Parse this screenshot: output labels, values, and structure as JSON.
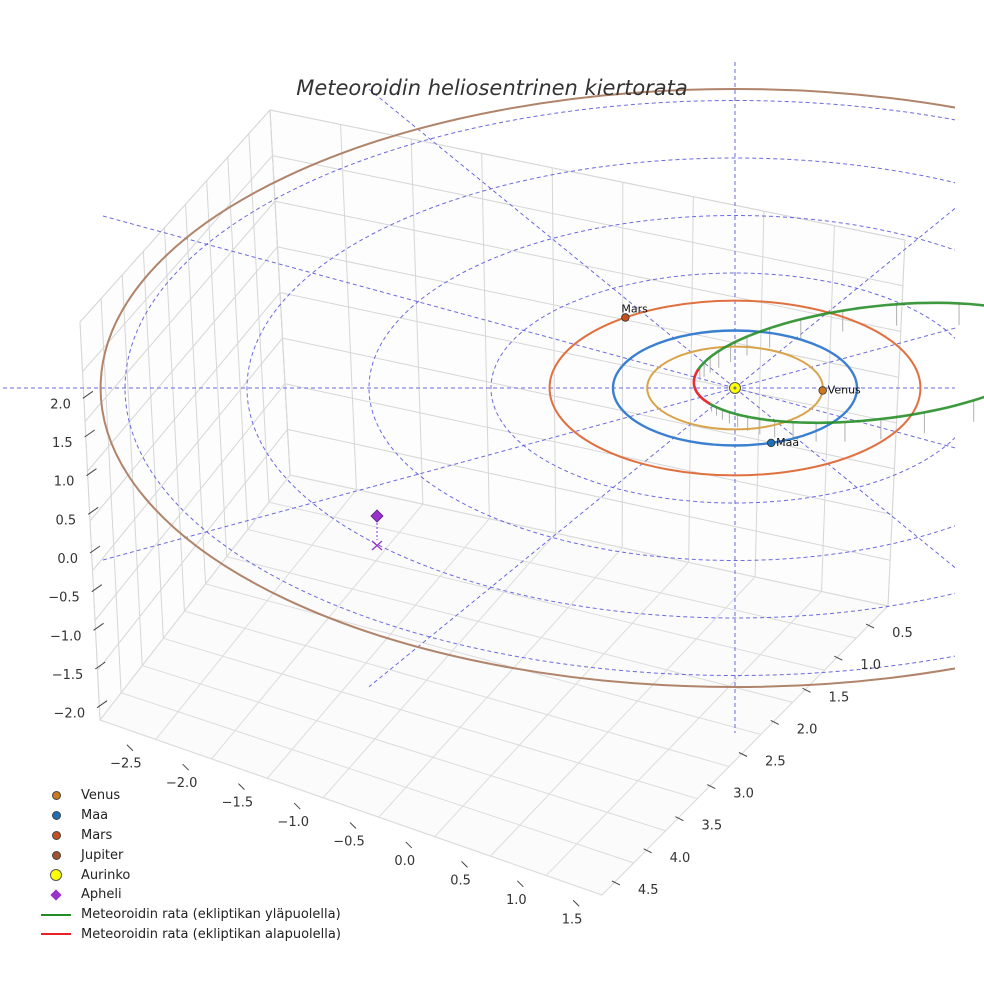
{
  "chart_data": {
    "type": "3d-orbit",
    "title": "Meteoroidin heliosentrinen kiertorata",
    "axes": {
      "x_ticks": [
        "−2.5",
        "−2.0",
        "−1.5",
        "−1.0",
        "−0.5",
        "0.0",
        "0.5",
        "1.0",
        "1.5"
      ],
      "y_ticks": [
        "0.5",
        "1.0",
        "1.5",
        "2.0",
        "2.5",
        "3.0",
        "3.5",
        "4.0",
        "4.5"
      ],
      "z_ticks": [
        "2.0",
        "1.5",
        "1.0",
        "0.5",
        "0.0",
        "−0.5",
        "−1.0",
        "−1.5",
        "−2.0"
      ],
      "xlim": [
        -2.8,
        1.6
      ],
      "ylim": [
        0.3,
        4.7
      ],
      "zlim": [
        -2.0,
        2.0
      ]
    },
    "planets": [
      {
        "name": "Venus",
        "orbit_radius_au": 0.72,
        "color": "#cc7a1c",
        "orbit_color": "#d9a34a"
      },
      {
        "name": "Maa",
        "orbit_radius_au": 1.0,
        "color": "#1f6fb4",
        "orbit_color": "#3a7fd0"
      },
      {
        "name": "Mars",
        "orbit_radius_au": 1.52,
        "color": "#c4501d",
        "orbit_color": "#e07040"
      },
      {
        "name": "Jupiter",
        "orbit_radius_au": 5.2,
        "color": "#a0522d",
        "orbit_color": "#b0846a"
      }
    ],
    "sun": {
      "name": "Aurinko",
      "color": "#ffff00"
    },
    "meteoroid": {
      "aphelion_au": 2.8,
      "perihelion_au": 0.32,
      "above_label": "Meteoroidin rata (ekliptikan yläpuolella)",
      "below_label": "Meteoroidin rata (ekliptikan alapuolella)",
      "above_color": "#228b22",
      "below_color": "#e8202a"
    },
    "aphelion_marker": {
      "name": "Apheli",
      "color": "#9932cc"
    },
    "grid": true,
    "ecliptic_grid_radii_au": [
      1,
      2,
      3,
      4,
      5
    ],
    "legend": {
      "position": "bottom-left",
      "items": [
        {
          "label": "Venus",
          "kind": "dot",
          "color": "#cc7a1c"
        },
        {
          "label": "Maa",
          "kind": "dot",
          "color": "#1f6fb4"
        },
        {
          "label": "Mars",
          "kind": "dot",
          "color": "#c4501d"
        },
        {
          "label": "Jupiter",
          "kind": "dot",
          "color": "#a0522d"
        },
        {
          "label": "Aurinko",
          "kind": "bigdot",
          "color": "#ffff00"
        },
        {
          "label": "Apheli",
          "kind": "diamond",
          "color": "#9932cc"
        },
        {
          "label": "Meteoroidin rata (ekliptikan yläpuolella)",
          "kind": "line",
          "color": "#228b22"
        },
        {
          "label": "Meteoroidin rata (ekliptikan alapuolella)",
          "kind": "line",
          "color": "#e8202a"
        }
      ]
    }
  }
}
